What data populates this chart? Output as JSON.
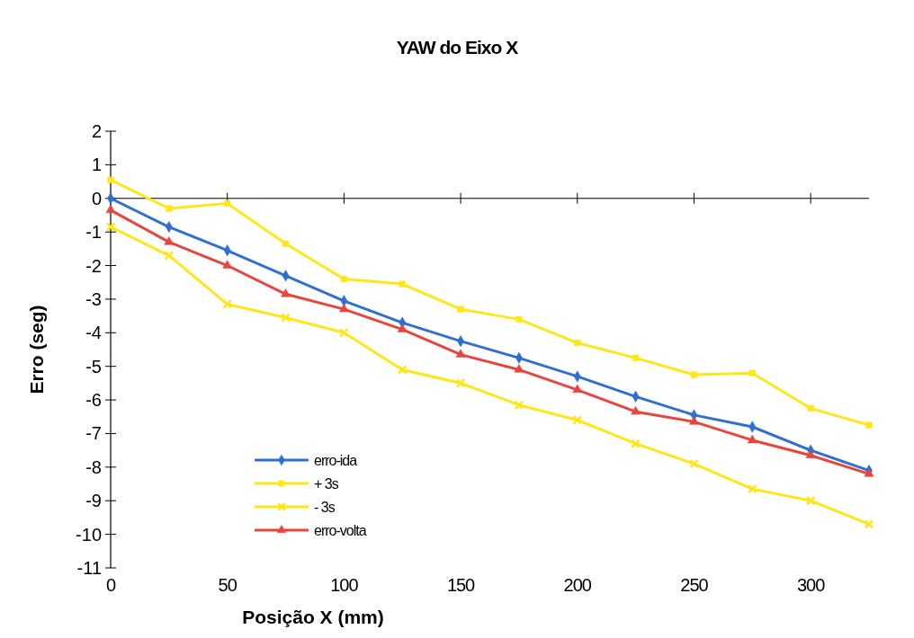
{
  "chart_data": {
    "type": "line",
    "title": "YAW do Eixo X",
    "xlabel": "Posição  X  (mm)",
    "ylabel": "Erro   (seg)",
    "x": [
      0,
      25,
      50,
      75,
      100,
      125,
      150,
      175,
      200,
      225,
      250,
      275,
      300,
      325
    ],
    "series": [
      {
        "name": "erro-ida",
        "color": "#2f6fd0",
        "marker": "diamond",
        "values": [
          0,
          -0.85,
          -1.55,
          -2.3,
          -3.05,
          -3.7,
          -4.25,
          -4.75,
          -5.3,
          -5.9,
          -6.45,
          -6.8,
          -7.5,
          -8.1
        ]
      },
      {
        "name": "+ 3s",
        "color": "#ffe619",
        "marker": "square",
        "values": [
          0.55,
          -0.3,
          -0.15,
          -1.35,
          -2.4,
          -2.55,
          -3.3,
          -3.6,
          -4.3,
          -4.75,
          -5.25,
          -5.2,
          -6.25,
          -6.75
        ]
      },
      {
        "name": "- 3s",
        "color": "#ffe619",
        "marker": "cross",
        "values": [
          -0.85,
          -1.7,
          -3.15,
          -3.55,
          -4.0,
          -5.1,
          -5.5,
          -6.15,
          -6.6,
          -7.3,
          -7.9,
          -8.65,
          -9.0,
          -9.7
        ]
      },
      {
        "name": "erro-volta",
        "color": "#e8453c",
        "marker": "triangle",
        "values": [
          -0.35,
          -1.3,
          -2.0,
          -2.85,
          -3.3,
          -3.9,
          -4.65,
          -5.1,
          -5.7,
          -6.35,
          -6.65,
          -7.2,
          -7.65,
          -8.2
        ]
      }
    ],
    "xlim": [
      0,
      325
    ],
    "xticks": [
      0,
      50,
      100,
      150,
      200,
      250,
      300
    ],
    "ylim": [
      -11,
      2
    ],
    "yticks": [
      -11,
      -10,
      -9,
      -8,
      -7,
      -6,
      -5,
      -4,
      -3,
      -2,
      -1,
      0,
      1,
      2
    ],
    "legend": "bottom left"
  }
}
